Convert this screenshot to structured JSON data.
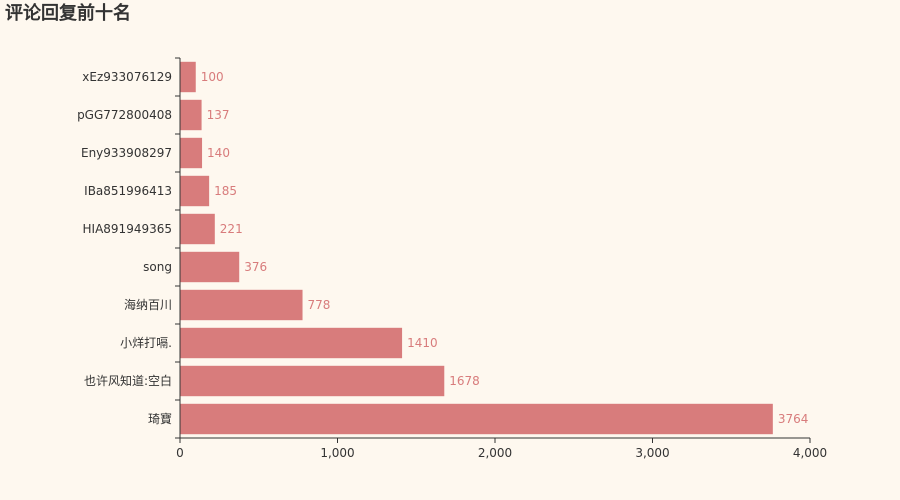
{
  "chart_data": {
    "type": "bar",
    "orientation": "horizontal",
    "title": "评论回复前十名",
    "categories": [
      "xEz933076129",
      "pGG772800408",
      "Eny933908297",
      "IBa851996413",
      "HIA891949365",
      "song",
      "海纳百川",
      "小烊打嗝.",
      "也许风知道:空白",
      "琦寶"
    ],
    "values": [
      100,
      137,
      140,
      185,
      221,
      376,
      778,
      1410,
      1678,
      3764
    ],
    "xlim": [
      0,
      4000
    ],
    "x_ticks": [
      0,
      1000,
      2000,
      3000,
      4000
    ],
    "x_tick_labels": [
      "0",
      "1,000",
      "2,000",
      "3,000",
      "4,000"
    ],
    "grid": false,
    "data_labels": true,
    "colors": {
      "bar": "#d87c7c",
      "background": "#fef8ef",
      "axis": "#333333"
    }
  }
}
